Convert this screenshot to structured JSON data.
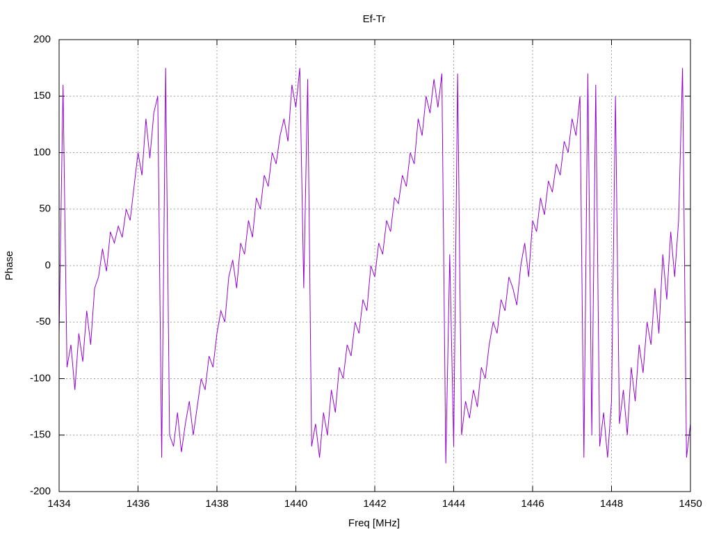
{
  "chart_data": {
    "type": "line",
    "title": "Ef-Tr",
    "x_label": "Freq [MHz]",
    "y_label": "Phase",
    "x": [
      1434,
      1434.1,
      1434.2,
      1434.3,
      1434.4,
      1434.5,
      1434.6,
      1434.7,
      1434.8,
      1434.9,
      1435,
      1435.1,
      1435.2,
      1435.3,
      1435.4,
      1435.5,
      1435.6,
      1435.7,
      1435.8,
      1435.9,
      1436,
      1436.1,
      1436.2,
      1436.3,
      1436.4,
      1436.5,
      1436.6,
      1436.7,
      1436.8,
      1436.9,
      1437,
      1437.1,
      1437.2,
      1437.3,
      1437.4,
      1437.5,
      1437.6,
      1437.7,
      1437.8,
      1437.9,
      1438,
      1438.1,
      1438.2,
      1438.3,
      1438.4,
      1438.5,
      1438.6,
      1438.7,
      1438.8,
      1438.9,
      1439,
      1439.1,
      1439.2,
      1439.3,
      1439.4,
      1439.5,
      1439.6,
      1439.7,
      1439.8,
      1439.9,
      1440,
      1440.1,
      1440.2,
      1440.3,
      1440.4,
      1440.5,
      1440.6,
      1440.7,
      1440.8,
      1440.9,
      1441,
      1441.1,
      1441.2,
      1441.3,
      1441.4,
      1441.5,
      1441.6,
      1441.7,
      1441.8,
      1441.9,
      1442,
      1442.1,
      1442.2,
      1442.3,
      1442.4,
      1442.5,
      1442.6,
      1442.7,
      1442.8,
      1442.9,
      1443,
      1443.1,
      1443.2,
      1443.3,
      1443.4,
      1443.5,
      1443.6,
      1443.7,
      1443.8,
      1443.9,
      1444,
      1444.1,
      1444.2,
      1444.3,
      1444.4,
      1444.5,
      1444.6,
      1444.7,
      1444.8,
      1444.9,
      1445,
      1445.1,
      1445.2,
      1445.3,
      1445.4,
      1445.5,
      1445.6,
      1445.7,
      1445.8,
      1445.9,
      1446,
      1446.1,
      1446.2,
      1446.3,
      1446.4,
      1446.5,
      1446.6,
      1446.7,
      1446.8,
      1446.9,
      1447,
      1447.1,
      1447.2,
      1447.3,
      1447.4,
      1447.5,
      1447.6,
      1447.7,
      1447.8,
      1447.9,
      1448,
      1448.1,
      1448.2,
      1448.3,
      1448.4,
      1448.5,
      1448.6,
      1448.7,
      1448.8,
      1448.9,
      1449,
      1449.1,
      1449.2,
      1449.3,
      1449.4,
      1449.5,
      1449.6,
      1449.7,
      1449.8,
      1449.9,
      1450
    ],
    "series": [
      {
        "color": "#9400d3",
        "values": [
          -60,
          160,
          -90,
          -70,
          -110,
          -60,
          -85,
          -40,
          -70,
          -20,
          -10,
          15,
          -5,
          30,
          20,
          35,
          25,
          50,
          40,
          70,
          100,
          80,
          130,
          95,
          135,
          150,
          -170,
          175,
          -150,
          -160,
          -130,
          -165,
          -140,
          -120,
          -150,
          -125,
          -100,
          -110,
          -80,
          -90,
          -60,
          -40,
          -50,
          -10,
          5,
          -20,
          20,
          10,
          40,
          25,
          60,
          50,
          80,
          70,
          100,
          90,
          115,
          130,
          110,
          160,
          140,
          175,
          -20,
          165,
          -160,
          -140,
          -170,
          -130,
          -150,
          -110,
          -130,
          -90,
          -100,
          -70,
          -80,
          -50,
          -60,
          -30,
          -40,
          0,
          -10,
          20,
          10,
          40,
          30,
          60,
          55,
          80,
          70,
          100,
          90,
          130,
          115,
          150,
          135,
          165,
          140,
          170,
          -175,
          10,
          -160,
          170,
          -150,
          -120,
          -135,
          -110,
          -125,
          -90,
          -100,
          -70,
          -50,
          -60,
          -30,
          -40,
          -10,
          -20,
          -35,
          0,
          20,
          -10,
          40,
          30,
          60,
          45,
          75,
          65,
          90,
          80,
          110,
          100,
          130,
          115,
          150,
          -170,
          170,
          -150,
          160,
          -160,
          -130,
          -170,
          -120,
          150,
          -140,
          -110,
          -150,
          -90,
          -120,
          -70,
          -95,
          -50,
          -70,
          -20,
          -60,
          10,
          -30,
          30,
          -10,
          40,
          175,
          -170,
          -140
        ]
      }
    ],
    "xlim": [
      1434,
      1450
    ],
    "xticks": [
      1434,
      1436,
      1438,
      1440,
      1442,
      1444,
      1446,
      1448,
      1450
    ],
    "ylim": [
      -200,
      200
    ],
    "yticks": [
      -200,
      -150,
      -100,
      -50,
      0,
      50,
      100,
      150,
      200
    ],
    "grid": true
  }
}
